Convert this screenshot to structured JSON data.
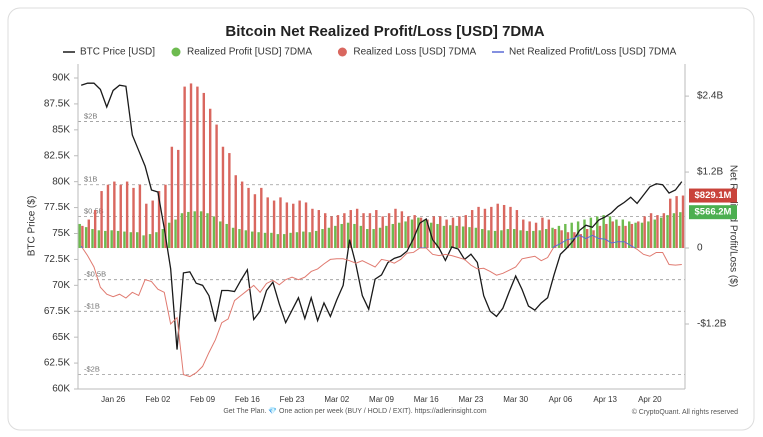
{
  "chart_data": {
    "type": "combo",
    "title": "Bitcoin Net Realized Profit/Loss [USD] 7DMA",
    "y_label": "BTC Price ($)",
    "y2_label": "Net Realized Profit/Loss ($)",
    "footer": "Get The Plan. 💎 One action per week (BUY / HOLD / EXIT). https://adlerinsight.com",
    "credit": "© CryptoQuant. All rights reserved",
    "categories": [
      null,
      null,
      null,
      null,
      null,
      "Jan 26",
      null,
      null,
      null,
      null,
      null,
      null,
      "Feb 02",
      null,
      null,
      null,
      null,
      null,
      null,
      "Feb 09",
      null,
      null,
      null,
      null,
      null,
      null,
      "Feb 16",
      null,
      null,
      null,
      null,
      null,
      null,
      "Feb 23",
      null,
      null,
      null,
      null,
      null,
      null,
      "Mar 02",
      null,
      null,
      null,
      null,
      null,
      null,
      "Mar 09",
      null,
      null,
      null,
      null,
      null,
      null,
      "Mar 16",
      null,
      null,
      null,
      null,
      null,
      null,
      "Mar 23",
      null,
      null,
      null,
      null,
      null,
      null,
      "Mar 30",
      null,
      null,
      null,
      null,
      null,
      null,
      "Apr 06",
      null,
      null,
      null,
      null,
      null,
      null,
      "Apr 13",
      null,
      null,
      null,
      null,
      null,
      null,
      "Apr 20",
      null,
      null,
      null,
      null,
      null
    ],
    "ylim": [
      60000,
      91350
    ],
    "yticks": [
      {
        "value": 60000,
        "label": "60K"
      },
      {
        "value": 62500,
        "label": "62.5K"
      },
      {
        "value": 65000,
        "label": "65K"
      },
      {
        "value": 67500,
        "label": "67.5K"
      },
      {
        "value": 70000,
        "label": "70K"
      },
      {
        "value": 72500,
        "label": "72.5K"
      },
      {
        "value": 75000,
        "label": "75K"
      },
      {
        "value": 77500,
        "label": "77.5K"
      },
      {
        "value": 80000,
        "label": "80K"
      },
      {
        "value": 82500,
        "label": "82.5K"
      },
      {
        "value": 85000,
        "label": "85K"
      },
      {
        "value": 87500,
        "label": "87.5K"
      },
      {
        "value": 90000,
        "label": "90K"
      }
    ],
    "y2lim": [
      -2227000000.0,
      2907000000.0
    ],
    "y2ticks": [
      {
        "value": -1200000000.0,
        "label": "-$1.2B"
      },
      0,
      {
        "value": 1200000000.0,
        "label": "$1.2B"
      },
      {
        "value": 2400000000.0,
        "label": "$2.4B"
      }
    ],
    "reference_lines": [
      {
        "value": 2000000000.0,
        "label": "$2B"
      },
      {
        "value": 1000000000.0,
        "label": "$1B"
      },
      {
        "value": 500000000.0,
        "label": "$0.5B"
      },
      {
        "value": -500000000.0,
        "label": "-$0.5B"
      },
      {
        "value": -1000000000.0,
        "label": "-$1B"
      },
      {
        "value": -2000000000.0,
        "label": "-$2B"
      }
    ],
    "badges": [
      {
        "value": 829100000.0,
        "label": "$829.1M",
        "color": "#c9433b"
      },
      {
        "value": 566200000.0,
        "label": "$566.2M",
        "color": "#4caf50"
      }
    ],
    "series": [
      {
        "name": "BTC Price [USD]",
        "type": "line",
        "axis": "y",
        "color": "#1a1a1a",
        "values": [
          89300,
          89500,
          89500,
          88900,
          87200,
          88800,
          89300,
          89200,
          84500,
          83000,
          81500,
          79200,
          79000,
          75500,
          71600,
          63800,
          71200,
          71300,
          70200,
          70000,
          69000,
          66500,
          69500,
          69500,
          69400,
          70500,
          71500,
          66700,
          67500,
          69500,
          70300,
          68200,
          66400,
          67600,
          68800,
          66800,
          68800,
          66600,
          68300,
          67000,
          68600,
          70000,
          74400,
          72000,
          69000,
          67700,
          70600,
          71000,
          72200,
          72600,
          72800,
          73300,
          74500,
          76000,
          76400,
          74400,
          73600,
          72400,
          73700,
          73500,
          72500,
          73000,
          72200,
          69000,
          67500,
          67000,
          67800,
          69400,
          70900,
          69600,
          68000,
          67600,
          68300,
          68800,
          71000,
          73000,
          73600,
          74300,
          75300,
          75800,
          75600,
          76300,
          76600,
          77000,
          77600,
          78000,
          78500,
          77900,
          78700,
          79500,
          79800,
          79700,
          78900,
          79200,
          80000
        ]
      },
      {
        "name": "Realized Profit [USD] 7DMA",
        "type": "bar",
        "axis": "y2",
        "color": "#6dbb4f",
        "values": [
          380000000.0,
          330000000.0,
          300000000.0,
          280000000.0,
          270000000.0,
          280000000.0,
          270000000.0,
          260000000.0,
          250000000.0,
          250000000.0,
          200000000.0,
          220000000.0,
          250000000.0,
          300000000.0,
          400000000.0,
          450000000.0,
          550000000.0,
          570000000.0,
          580000000.0,
          580000000.0,
          550000000.0,
          500000000.0,
          420000000.0,
          380000000.0,
          320000000.0,
          300000000.0,
          280000000.0,
          260000000.0,
          250000000.0,
          240000000.0,
          240000000.0,
          220000000.0,
          220000000.0,
          240000000.0,
          250000000.0,
          260000000.0,
          250000000.0,
          270000000.0,
          300000000.0,
          320000000.0,
          350000000.0,
          380000000.0,
          400000000.0,
          380000000.0,
          350000000.0,
          300000000.0,
          300000000.0,
          320000000.0,
          350000000.0,
          380000000.0,
          400000000.0,
          420000000.0,
          450000000.0,
          480000000.0,
          450000000.0,
          400000000.0,
          380000000.0,
          350000000.0,
          360000000.0,
          350000000.0,
          340000000.0,
          330000000.0,
          320000000.0,
          300000000.0,
          280000000.0,
          270000000.0,
          280000000.0,
          300000000.0,
          300000000.0,
          280000000.0,
          270000000.0,
          270000000.0,
          280000000.0,
          300000000.0,
          320000000.0,
          350000000.0,
          380000000.0,
          400000000.0,
          420000000.0,
          450000000.0,
          480000000.0,
          500000000.0,
          520000000.0,
          500000000.0,
          450000000.0,
          450000000.0,
          420000000.0,
          400000000.0,
          400000000.0,
          420000000.0,
          450000000.0,
          480000000.0,
          520000000.0,
          550000000.0,
          566200000.0
        ]
      },
      {
        "name": "Realized Loss [USD] 7DMA",
        "type": "bar",
        "axis": "y2",
        "color": "#d9675f",
        "values": [
          350000000.0,
          450000000.0,
          600000000.0,
          900000000.0,
          1000000000.0,
          1050000000.0,
          1000000000.0,
          1050000000.0,
          950000000.0,
          1000000000.0,
          700000000.0,
          750000000.0,
          900000000.0,
          1000000000.0,
          1600000000.0,
          1550000000.0,
          2550000000.0,
          2600000000.0,
          2550000000.0,
          2450000000.0,
          2200000000.0,
          1950000000.0,
          1600000000.0,
          1500000000.0,
          1150000000.0,
          1050000000.0,
          950000000.0,
          850000000.0,
          950000000.0,
          800000000.0,
          750000000.0,
          800000000.0,
          720000000.0,
          700000000.0,
          750000000.0,
          720000000.0,
          620000000.0,
          600000000.0,
          550000000.0,
          500000000.0,
          520000000.0,
          550000000.0,
          600000000.0,
          620000000.0,
          550000000.0,
          550000000.0,
          600000000.0,
          500000000.0,
          550000000.0,
          620000000.0,
          580000000.0,
          500000000.0,
          520000000.0,
          480000000.0,
          450000000.0,
          500000000.0,
          500000000.0,
          450000000.0,
          480000000.0,
          500000000.0,
          520000000.0,
          600000000.0,
          650000000.0,
          620000000.0,
          650000000.0,
          700000000.0,
          680000000.0,
          650000000.0,
          600000000.0,
          450000000.0,
          420000000.0,
          400000000.0,
          480000000.0,
          450000000.0,
          300000000.0,
          280000000.0,
          250000000.0,
          250000000.0,
          220000000.0,
          300000000.0,
          280000000.0,
          350000000.0,
          380000000.0,
          420000000.0,
          350000000.0,
          350000000.0,
          380000000.0,
          420000000.0,
          500000000.0,
          550000000.0,
          520000000.0,
          550000000.0,
          780000000.0,
          820000000.0,
          829100000.0
        ]
      },
      {
        "name": "Net Realized Profit/Loss [USD] 7DMA",
        "type": "line",
        "axis": "y2",
        "color": "#5b6bd6",
        "negative_color": "#e07a70",
        "values": [
          30000000.0,
          -120000000.0,
          -300000000.0,
          -620000000.0,
          -730000000.0,
          -770000000.0,
          -730000000.0,
          -790000000.0,
          -700000000.0,
          -750000000.0,
          -500000000.0,
          -530000000.0,
          -650000000.0,
          -700000000.0,
          -1200000000.0,
          -1100000000.0,
          -2000000000.0,
          -2030000000.0,
          -1970000000.0,
          -1870000000.0,
          -1650000000.0,
          -1450000000.0,
          -1180000000.0,
          -1120000000.0,
          -830000000.0,
          -750000000.0,
          -670000000.0,
          -590000000.0,
          -700000000.0,
          -560000000.0,
          -510000000.0,
          -580000000.0,
          -500000000.0,
          -460000000.0,
          -500000000.0,
          -460000000.0,
          -370000000.0,
          -330000000.0,
          -250000000.0,
          -180000000.0,
          -170000000.0,
          -170000000.0,
          -200000000.0,
          -240000000.0,
          -200000000.0,
          -250000000.0,
          -300000000.0,
          -180000000.0,
          -200000000.0,
          -240000000.0,
          -180000000.0,
          -80000000.0,
          -70000000.0,
          0,
          0,
          -100000000.0,
          -120000000.0,
          -100000000.0,
          -120000000.0,
          -150000000.0,
          -180000000.0,
          -270000000.0,
          -330000000.0,
          -320000000.0,
          -370000000.0,
          -430000000.0,
          -400000000.0,
          -350000000.0,
          -300000000.0,
          -170000000.0,
          -150000000.0,
          -130000000.0,
          -200000000.0,
          -150000000.0,
          20000000.0,
          70000000.0,
          130000000.0,
          150000000.0,
          200000000.0,
          150000000.0,
          200000000.0,
          150000000.0,
          140000000.0,
          80000000.0,
          100000000.0,
          100000000.0,
          40000000.0,
          -20000000.0,
          -100000000.0,
          -130000000.0,
          -70000000.0,
          -70000000.0,
          -260000000.0,
          -270000000.0,
          -260000000.0
        ]
      }
    ]
  }
}
